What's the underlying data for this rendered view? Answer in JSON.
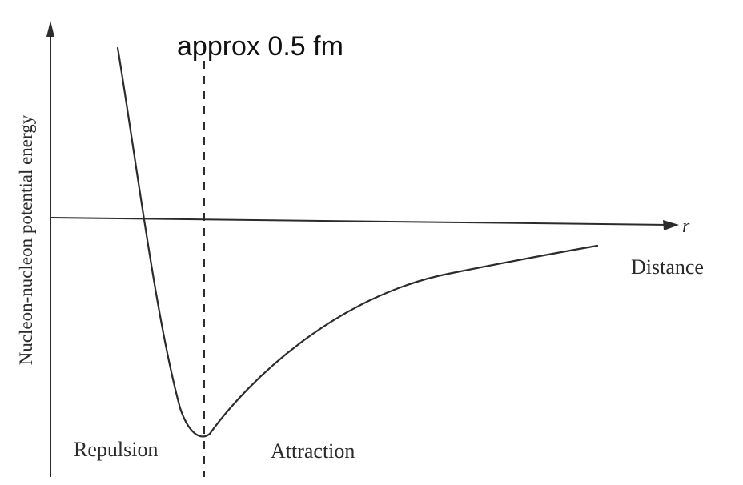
{
  "diagram": {
    "annotation": "approx 0.5 fm",
    "y_axis_label": "Nucleon-nucleon potential energy",
    "x_axis_symbol": "r",
    "x_axis_label": "Distance",
    "region_left": "Repulsion",
    "region_right": "Attraction"
  },
  "colors": {
    "ink": "#2b2b2b",
    "background": "#ffffff"
  }
}
